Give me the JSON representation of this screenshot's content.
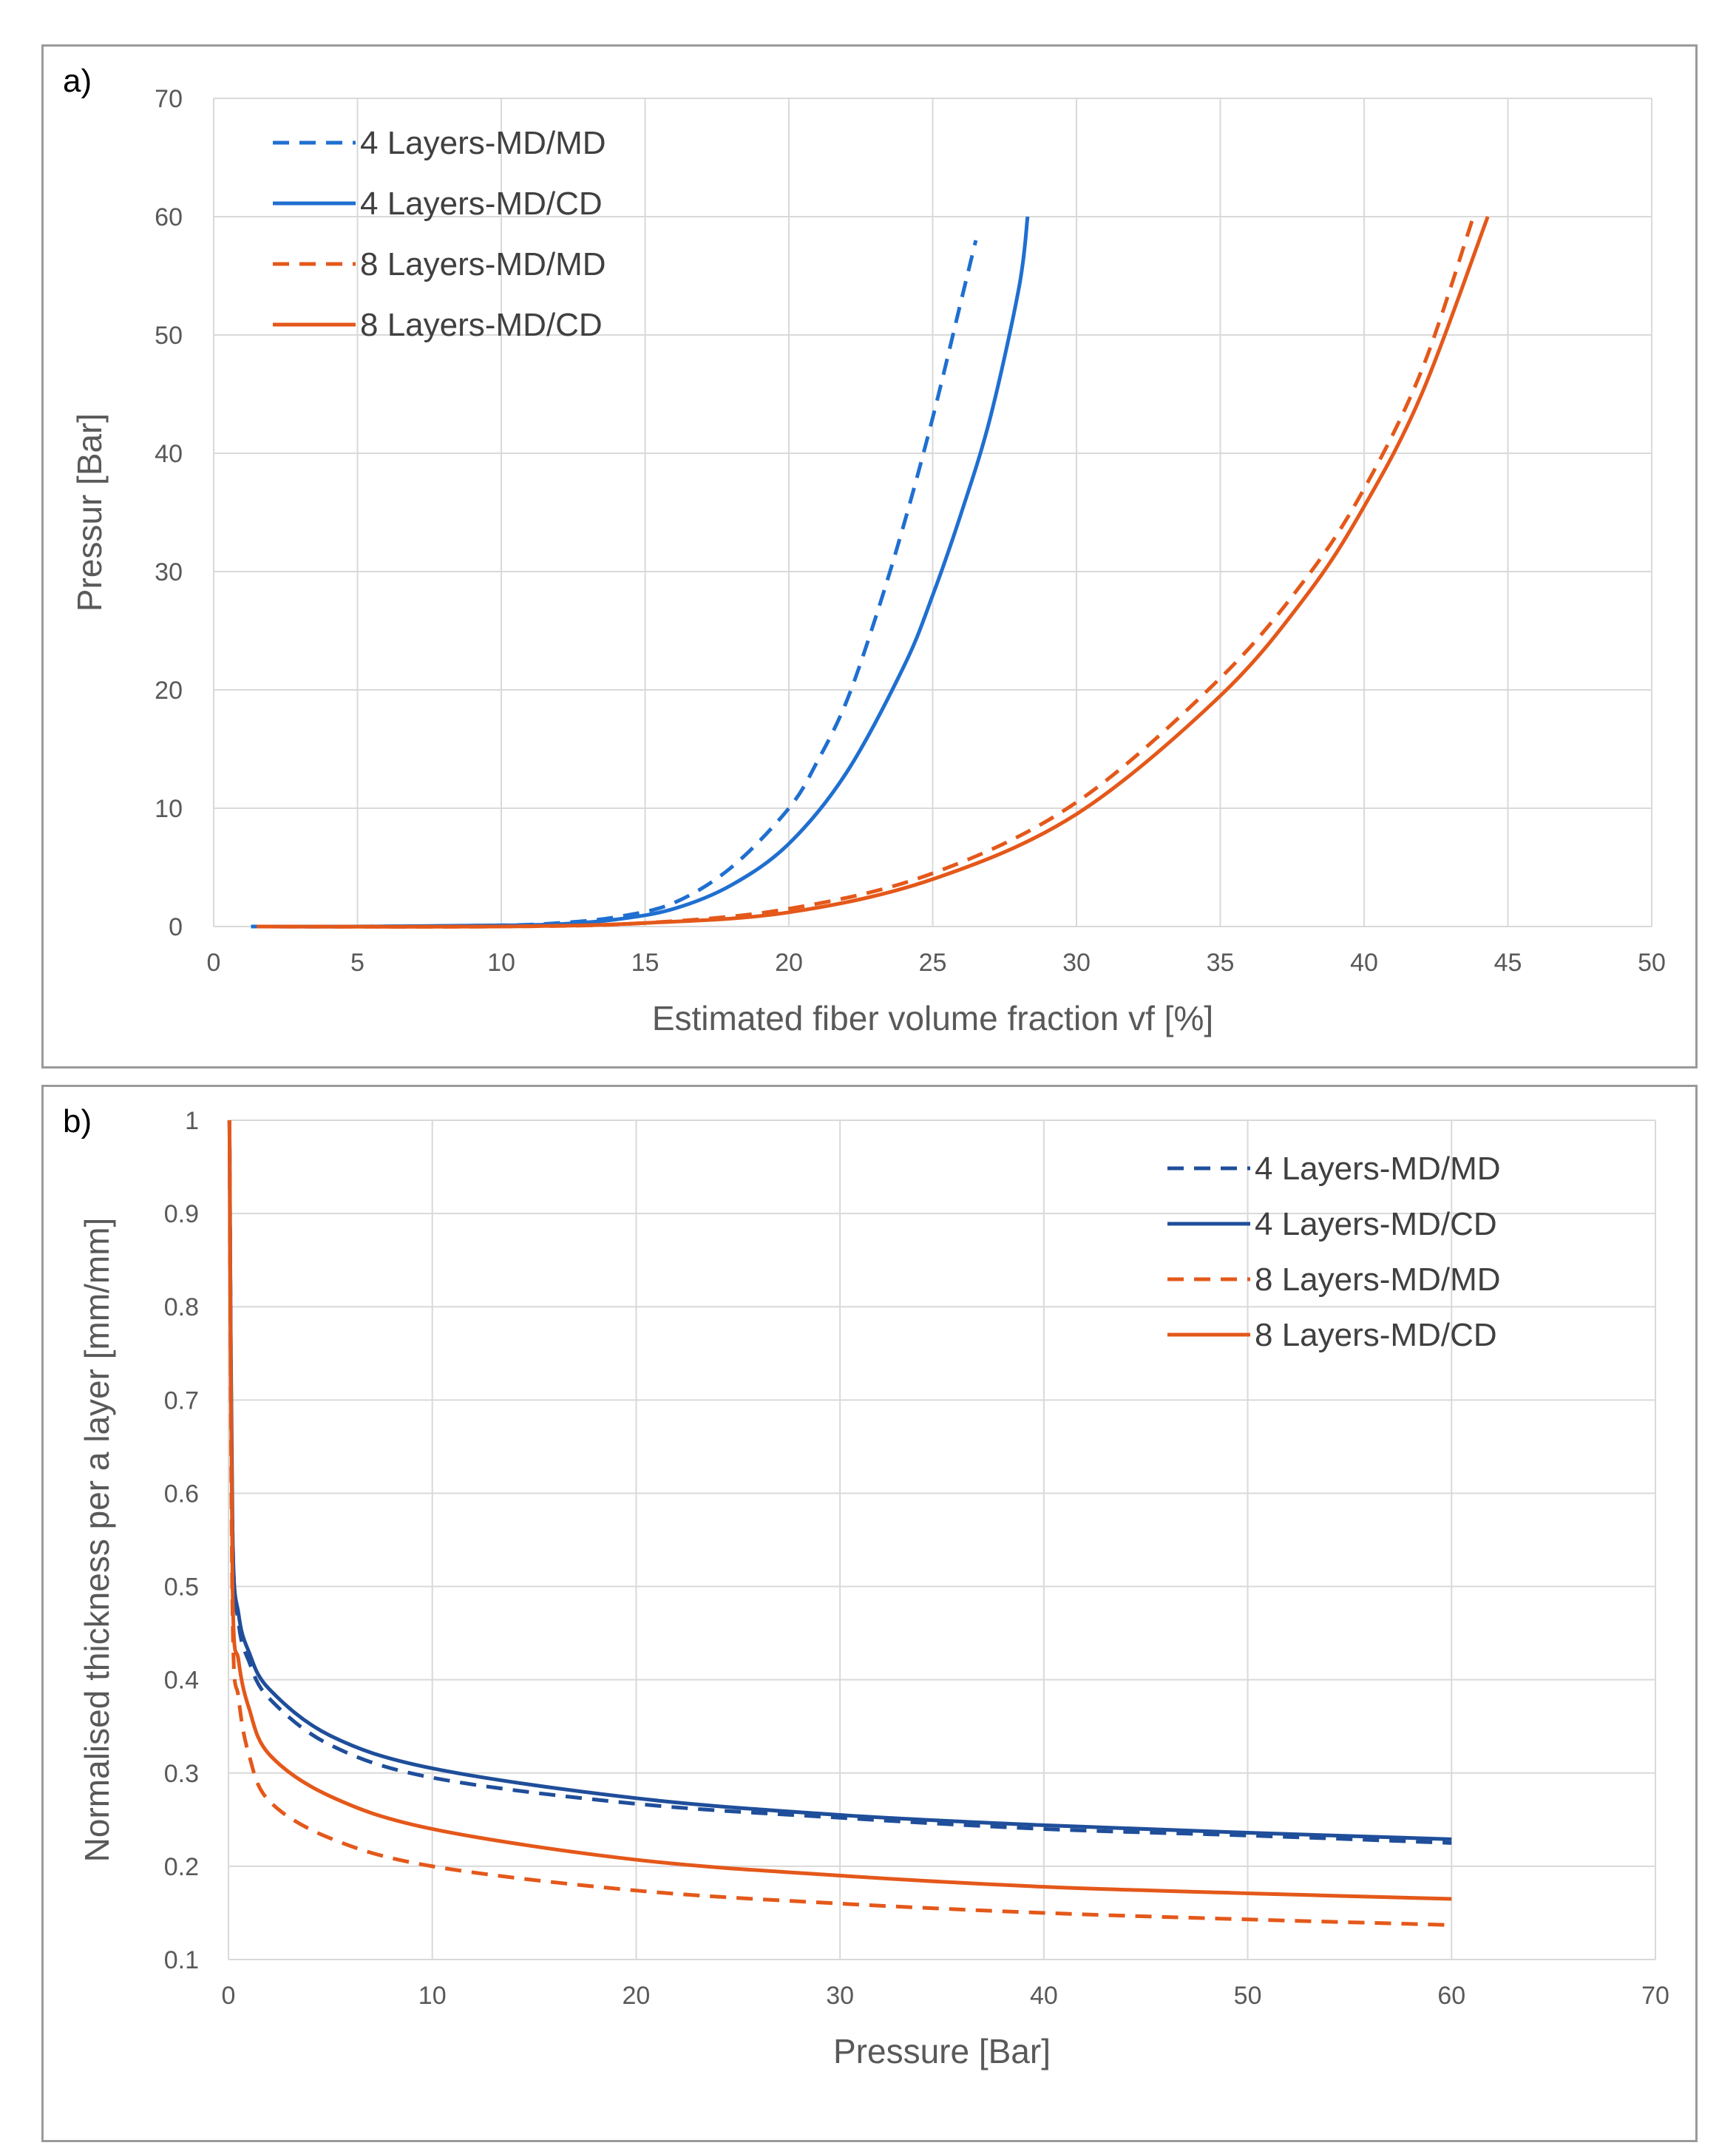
{
  "colors": {
    "blue_a": "#1f6fd0",
    "blue_b": "#1f4e9a",
    "orange": "#e4581a",
    "grid": "#d9d9d9",
    "axis_text": "#595959"
  },
  "chart_data": [
    {
      "type": "line",
      "panel_label": "a)",
      "xlabel": "Estimated fiber volume fraction  vf [%]",
      "ylabel": "Pressur [Bar]",
      "xlim": [
        0,
        50
      ],
      "ylim": [
        0,
        70
      ],
      "xticks": [
        "0",
        "5",
        "10",
        "15",
        "20",
        "25",
        "30",
        "35",
        "40",
        "45",
        "50"
      ],
      "yticks": [
        "0",
        "10",
        "20",
        "30",
        "40",
        "50",
        "60",
        "70"
      ],
      "grid": true,
      "legend_position": "top-left",
      "series": [
        {
          "name": "4 Layers-MD/MD",
          "color": "blue_a",
          "dash": true,
          "x": [
            1.3,
            5,
            10,
            12,
            14,
            16,
            18,
            20,
            21,
            22,
            23,
            24,
            25,
            26,
            26.5
          ],
          "y": [
            0,
            0,
            0.1,
            0.3,
            0.8,
            2,
            5,
            10,
            14,
            19,
            26,
            34,
            43,
            53,
            58
          ]
        },
        {
          "name": "4 Layers-MD/CD",
          "color": "blue_a",
          "dash": false,
          "x": [
            1.3,
            5,
            10,
            12,
            14,
            16,
            18,
            20,
            22,
            24,
            25,
            26,
            27,
            28,
            28.3
          ],
          "y": [
            0,
            0,
            0.1,
            0.2,
            0.6,
            1.5,
            3.5,
            7,
            13,
            22,
            28,
            35,
            43,
            54,
            60
          ]
        },
        {
          "name": "8 Layers-MD/MD",
          "color": "orange",
          "dash": true,
          "x": [
            1.5,
            10,
            15,
            20,
            25,
            30,
            35,
            38,
            40,
            42,
            43.8
          ],
          "y": [
            0,
            0,
            0.3,
            1.5,
            4.5,
            10.5,
            21,
            29.5,
            37,
            47,
            60
          ]
        },
        {
          "name": "8 Layers-MD/CD",
          "color": "orange",
          "dash": false,
          "x": [
            1.5,
            10,
            15,
            20,
            25,
            30,
            35,
            38,
            40,
            42,
            44.3
          ],
          "y": [
            0,
            0,
            0.3,
            1.2,
            4,
            9.5,
            19.5,
            28,
            35.5,
            45,
            60
          ]
        }
      ]
    },
    {
      "type": "line",
      "panel_label": "b)",
      "xlabel": "Pressure [Bar]",
      "ylabel": "Normalised thickness per a layer [mm/mm]",
      "xlim": [
        0,
        70
      ],
      "ylim": [
        0.1,
        1
      ],
      "xticks": [
        "0",
        "10",
        "20",
        "30",
        "40",
        "50",
        "60",
        "70"
      ],
      "yticks": [
        "0.1",
        "0.2",
        "0.3",
        "0.4",
        "0.5",
        "0.6",
        "0.7",
        "0.8",
        "0.9",
        "1"
      ],
      "grid": true,
      "legend_position": "top-right",
      "series": [
        {
          "name": "4 Layers-MD/MD",
          "color": "blue_b",
          "dash": true,
          "x": [
            0.05,
            0.2,
            0.5,
            1,
            2,
            5,
            10,
            20,
            30,
            40,
            50,
            60
          ],
          "y": [
            1.0,
            0.56,
            0.46,
            0.42,
            0.38,
            0.33,
            0.295,
            0.267,
            0.252,
            0.24,
            0.233,
            0.225
          ]
        },
        {
          "name": "4 Layers-MD/CD",
          "color": "blue_b",
          "dash": false,
          "x": [
            0.05,
            0.2,
            0.5,
            1,
            2,
            5,
            10,
            20,
            30,
            40,
            50,
            60
          ],
          "y": [
            1.0,
            0.56,
            0.47,
            0.43,
            0.39,
            0.34,
            0.305,
            0.273,
            0.255,
            0.244,
            0.236,
            0.229
          ]
        },
        {
          "name": "8 Layers-MD/MD",
          "color": "orange",
          "dash": true,
          "x": [
            0.05,
            0.2,
            0.5,
            1,
            2,
            5,
            10,
            20,
            30,
            40,
            50,
            60
          ],
          "y": [
            1.0,
            0.47,
            0.38,
            0.32,
            0.27,
            0.23,
            0.2,
            0.174,
            0.16,
            0.15,
            0.143,
            0.137
          ]
        },
        {
          "name": "8 Layers-MD/CD",
          "color": "orange",
          "dash": false,
          "x": [
            0.05,
            0.2,
            0.5,
            1,
            2,
            5,
            10,
            20,
            30,
            40,
            50,
            60
          ],
          "y": [
            1.0,
            0.5,
            0.42,
            0.37,
            0.32,
            0.275,
            0.24,
            0.207,
            0.19,
            0.178,
            0.171,
            0.165
          ]
        }
      ]
    }
  ]
}
